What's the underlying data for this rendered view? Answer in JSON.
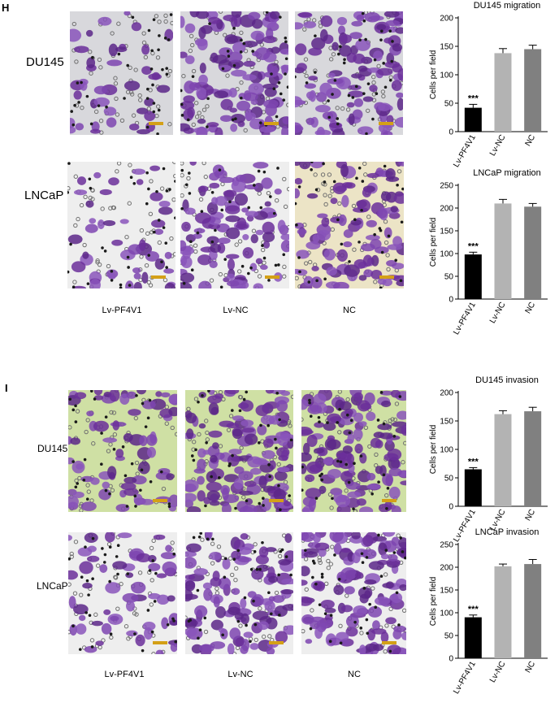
{
  "panels": [
    {
      "letter": "H",
      "rows": [
        "DU145",
        "LNCaP"
      ],
      "columns": [
        "Lv-PF4V1",
        "Lv-NC",
        "NC"
      ]
    },
    {
      "letter": "I",
      "rows": [
        "DU145",
        "LNCaP"
      ],
      "columns": [
        "Lv-PF4V1",
        "Lv-NC",
        "NC"
      ]
    }
  ],
  "colors": {
    "bar_black": "#000000",
    "bar_light": "#b3b3b3",
    "bar_mid": "#808080",
    "stain_purple": "#7a3fa6",
    "bg_grey": "#d8d8dc",
    "bg_green": "#cfe0a4",
    "bg_cream": "#ece4c6",
    "bg_white": "#eeeeee"
  },
  "chart_data": [
    {
      "type": "bar",
      "title": "DU145 migration",
      "ylabel": "Cells per field",
      "categories": [
        "Lv-PF4V1",
        "Lv-NC",
        "NC"
      ],
      "values": [
        42,
        138,
        145
      ],
      "errors": [
        6,
        8,
        7
      ],
      "ylim": [
        0,
        200
      ],
      "yticks": [
        "0",
        "50",
        "100",
        "150",
        "200"
      ],
      "annotations": [
        "***",
        "",
        ""
      ]
    },
    {
      "type": "bar",
      "title": "LNCaP migration",
      "ylabel": "Cells per field",
      "categories": [
        "Lv-PF4V1",
        "Lv-NC",
        "NC"
      ],
      "values": [
        98,
        210,
        203
      ],
      "errors": [
        5,
        9,
        7
      ],
      "ylim": [
        0,
        250
      ],
      "yticks": [
        "0",
        "50",
        "100",
        "150",
        "200",
        "250"
      ],
      "annotations": [
        "***",
        "",
        ""
      ]
    },
    {
      "type": "bar",
      "title": "DU145 invasion",
      "ylabel": "Cells per field",
      "categories": [
        "Lv-PF4V1",
        "Lv-NC",
        "NC"
      ],
      "values": [
        65,
        162,
        167
      ],
      "errors": [
        3,
        6,
        7
      ],
      "ylim": [
        0,
        200
      ],
      "yticks": [
        "0",
        "50",
        "100",
        "150",
        "200"
      ],
      "annotations": [
        "***",
        "",
        ""
      ]
    },
    {
      "type": "bar",
      "title": "LNCaP invasion",
      "ylabel": "Cells per field",
      "categories": [
        "Lv-PF4V1",
        "Lv-NC",
        "NC"
      ],
      "values": [
        90,
        202,
        207
      ],
      "errors": [
        5,
        5,
        10
      ],
      "ylim": [
        0,
        250
      ],
      "yticks": [
        "0",
        "50",
        "100",
        "150",
        "200",
        "250"
      ],
      "annotations": [
        "***",
        "",
        ""
      ]
    }
  ]
}
